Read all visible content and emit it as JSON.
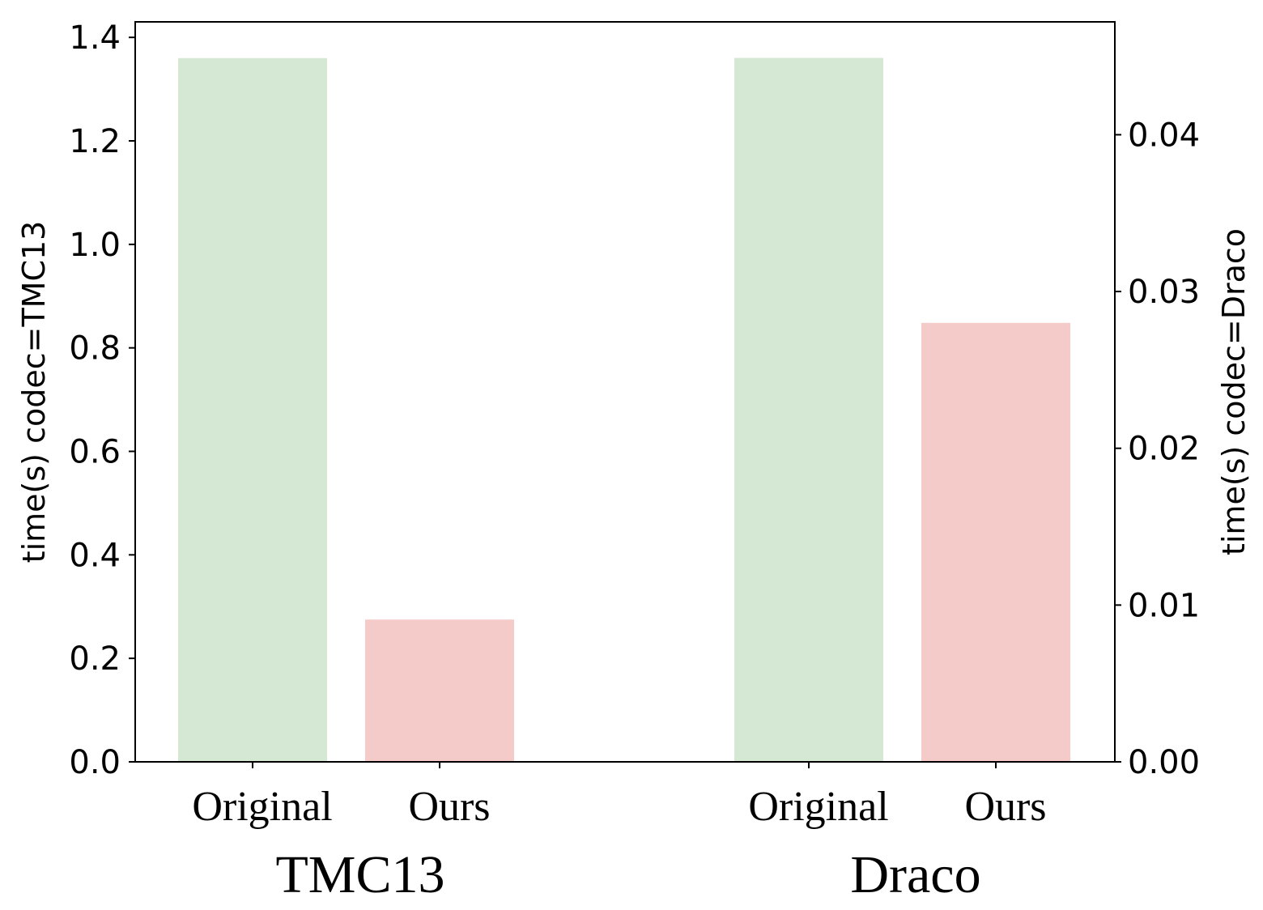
{
  "chart_data": {
    "type": "bar",
    "left_axis": {
      "label": "time(s) codec=TMC13",
      "ylim": [
        0,
        1.43
      ],
      "ticks": [
        "0.0",
        "0.2",
        "0.4",
        "0.6",
        "0.8",
        "1.0",
        "1.2",
        "1.4"
      ]
    },
    "right_axis": {
      "label": "time(s) codec=Draco",
      "ylim": [
        0,
        0.0472
      ],
      "ticks": [
        "0.00",
        "0.01",
        "0.02",
        "0.03",
        "0.04"
      ]
    },
    "groups": [
      {
        "name": "TMC13",
        "axis": "left",
        "categories": [
          "Original",
          "Ours"
        ],
        "values": [
          1.36,
          0.275
        ]
      },
      {
        "name": "Draco",
        "axis": "right",
        "categories": [
          "Original",
          "Ours"
        ],
        "values": [
          0.0449,
          0.028
        ]
      }
    ],
    "colors": {
      "Original": "#d5e8d4",
      "Ours": "#f5cbca"
    },
    "grid": false,
    "legend": "none"
  }
}
